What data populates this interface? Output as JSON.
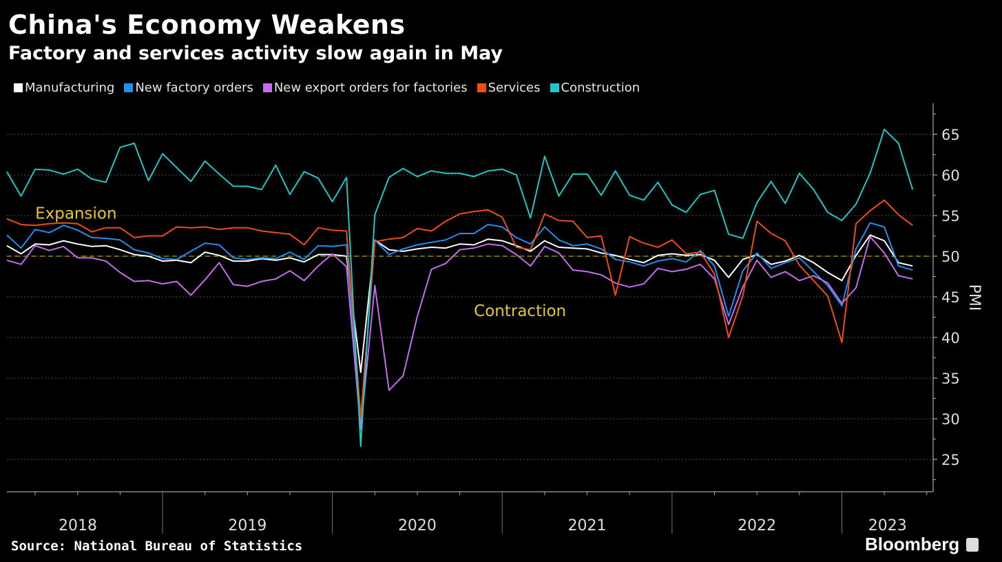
{
  "chart_data": {
    "type": "line",
    "title": "China's Economy Weakens",
    "subtitle": "Factory and services activity slow again in May",
    "ylabel": "PMI",
    "ylim": [
      21,
      68.8
    ],
    "yticks": [
      25,
      30,
      35,
      40,
      45,
      50,
      55,
      60,
      65
    ],
    "grid": true,
    "legend": "top-left",
    "year_labels": [
      "2018",
      "2019",
      "2020",
      "2021",
      "2022",
      "2023"
    ],
    "x_start": "2018-01",
    "x_end": "2023-05",
    "x_frequency": "monthly",
    "reference_line": {
      "value": 50,
      "color": "#b8a200"
    },
    "annotations": [
      {
        "text": "Expansion",
        "x": "2018-03",
        "y": 55.3,
        "color": "#e8c72a"
      },
      {
        "text": "Contraction",
        "x": "2020-10",
        "y": 43.3,
        "color": "#e8c72a"
      }
    ],
    "series": [
      {
        "name": "Manufacturing",
        "color": "#ffffff",
        "values": [
          51.3,
          50.3,
          51.5,
          51.4,
          51.9,
          51.5,
          51.2,
          51.3,
          50.8,
          50.2,
          50.0,
          49.4,
          49.5,
          49.2,
          50.5,
          50.1,
          49.4,
          49.4,
          49.7,
          49.5,
          49.8,
          49.3,
          50.2,
          50.2,
          50.0,
          35.7,
          52.0,
          50.8,
          50.6,
          50.9,
          51.1,
          51.0,
          51.5,
          51.4,
          52.1,
          51.9,
          51.3,
          50.6,
          51.9,
          51.1,
          51.0,
          50.9,
          50.4,
          50.1,
          49.6,
          49.2,
          50.1,
          50.3,
          50.1,
          50.2,
          49.5,
          47.4,
          49.6,
          50.2,
          49.0,
          49.4,
          50.1,
          49.2,
          48.0,
          47.0,
          50.1,
          52.6,
          51.9,
          49.2,
          48.8
        ]
      },
      {
        "name": "New factory orders",
        "color": "#1f8ff2",
        "values": [
          52.6,
          51.0,
          53.3,
          52.9,
          53.8,
          53.2,
          52.3,
          52.2,
          52.0,
          50.8,
          50.4,
          49.7,
          49.6,
          50.6,
          51.6,
          51.4,
          49.8,
          49.6,
          49.8,
          49.7,
          50.5,
          49.6,
          51.3,
          51.2,
          51.4,
          29.3,
          52.0,
          50.2,
          50.9,
          51.4,
          51.7,
          52.0,
          52.8,
          52.8,
          53.9,
          53.6,
          52.3,
          51.5,
          53.6,
          52.0,
          51.3,
          51.5,
          50.9,
          49.6,
          49.3,
          48.8,
          49.4,
          49.7,
          49.3,
          50.7,
          48.8,
          42.6,
          48.2,
          50.4,
          48.5,
          49.2,
          49.8,
          48.1,
          46.4,
          43.9,
          50.9,
          54.1,
          53.6,
          48.8,
          48.3
        ]
      },
      {
        "name": "New export orders for factories",
        "color": "#c56cf0",
        "values": [
          49.5,
          49.0,
          51.3,
          50.7,
          51.2,
          49.8,
          49.8,
          49.4,
          48.0,
          46.9,
          47.0,
          46.6,
          46.9,
          45.2,
          47.1,
          49.2,
          46.5,
          46.3,
          46.9,
          47.2,
          48.2,
          47.0,
          48.8,
          50.3,
          48.7,
          28.7,
          46.4,
          33.5,
          35.3,
          42.6,
          48.4,
          49.1,
          50.8,
          51.0,
          51.5,
          51.3,
          50.2,
          48.8,
          51.2,
          50.4,
          48.3,
          48.1,
          47.7,
          46.7,
          46.2,
          46.6,
          48.5,
          48.1,
          48.4,
          49.0,
          47.2,
          41.6,
          46.2,
          49.5,
          47.4,
          48.1,
          47.0,
          47.6,
          46.7,
          44.2,
          46.1,
          52.4,
          50.4,
          47.6,
          47.2
        ]
      },
      {
        "name": "Services",
        "color": "#f04e0f",
        "values": [
          54.6,
          53.9,
          53.8,
          54.0,
          54.1,
          54.0,
          53.0,
          53.5,
          53.5,
          52.3,
          52.5,
          52.5,
          53.6,
          53.5,
          53.6,
          53.3,
          53.5,
          53.5,
          53.1,
          52.9,
          52.7,
          51.4,
          53.5,
          53.2,
          53.1,
          30.1,
          51.8,
          52.1,
          52.3,
          53.4,
          53.1,
          54.3,
          55.2,
          55.5,
          55.7,
          54.8,
          51.1,
          50.8,
          55.2,
          54.4,
          54.3,
          52.3,
          52.5,
          45.2,
          52.4,
          51.6,
          51.1,
          52.0,
          50.3,
          50.5,
          47.8,
          40.0,
          45.1,
          54.3,
          52.8,
          51.9,
          48.9,
          47.0,
          45.1,
          39.4,
          54.0,
          55.6,
          56.9,
          55.1,
          53.8
        ]
      },
      {
        "name": "Construction",
        "color": "#1ec8c8",
        "values": [
          60.4,
          57.4,
          60.7,
          60.6,
          60.1,
          60.7,
          59.5,
          59.1,
          63.4,
          63.9,
          59.3,
          62.6,
          60.9,
          59.2,
          61.7,
          60.1,
          58.6,
          58.6,
          58.2,
          61.2,
          57.6,
          60.4,
          59.6,
          56.7,
          59.7,
          26.6,
          55.1,
          59.7,
          60.8,
          59.8,
          60.5,
          60.2,
          60.2,
          59.8,
          60.5,
          60.7,
          60.0,
          54.7,
          62.3,
          57.4,
          60.1,
          60.1,
          57.5,
          60.5,
          57.5,
          56.9,
          59.1,
          56.3,
          55.4,
          57.6,
          58.1,
          52.7,
          52.2,
          56.6,
          59.2,
          56.5,
          60.2,
          58.2,
          55.4,
          54.4,
          56.4,
          60.2,
          65.6,
          63.9,
          58.2
        ]
      }
    ]
  },
  "source": "Source: National Bureau of Statistics",
  "brand": "Bloomberg"
}
